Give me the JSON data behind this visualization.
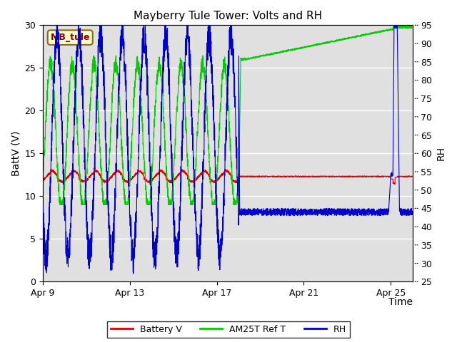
{
  "title": "Mayberry Tule Tower: Volts and RH",
  "xlabel": "Time",
  "ylabel_left": "BattV (V)",
  "ylabel_right": "RH",
  "watermark_text": "MB_tule",
  "watermark_color": "#8b0000",
  "watermark_bg": "#ffffcc",
  "watermark_border": "#8b6914",
  "xlim": [
    0,
    17
  ],
  "ylim_left": [
    0,
    30
  ],
  "ylim_right": [
    25,
    95
  ],
  "yticks_left": [
    0,
    5,
    10,
    15,
    20,
    25,
    30
  ],
  "yticks_right": [
    25,
    30,
    35,
    40,
    45,
    50,
    55,
    60,
    65,
    70,
    75,
    80,
    85,
    90,
    95
  ],
  "xtick_positions": [
    0,
    4,
    8,
    12,
    16
  ],
  "xtick_labels": [
    "Apr 9",
    "Apr 13",
    "Apr 17",
    "Apr 21",
    "Apr 25"
  ],
  "bg_color": "#e0e0e0",
  "fig_bg": "#ffffff",
  "line_colors": {
    "battery": "#dd0000",
    "am25t": "#00cc00",
    "rh": "#0000cc"
  },
  "legend_entries": [
    "Battery V",
    "AM25T Ref T",
    "RH"
  ],
  "title_fontsize": 11,
  "label_fontsize": 9,
  "legend_fontsize": 9
}
